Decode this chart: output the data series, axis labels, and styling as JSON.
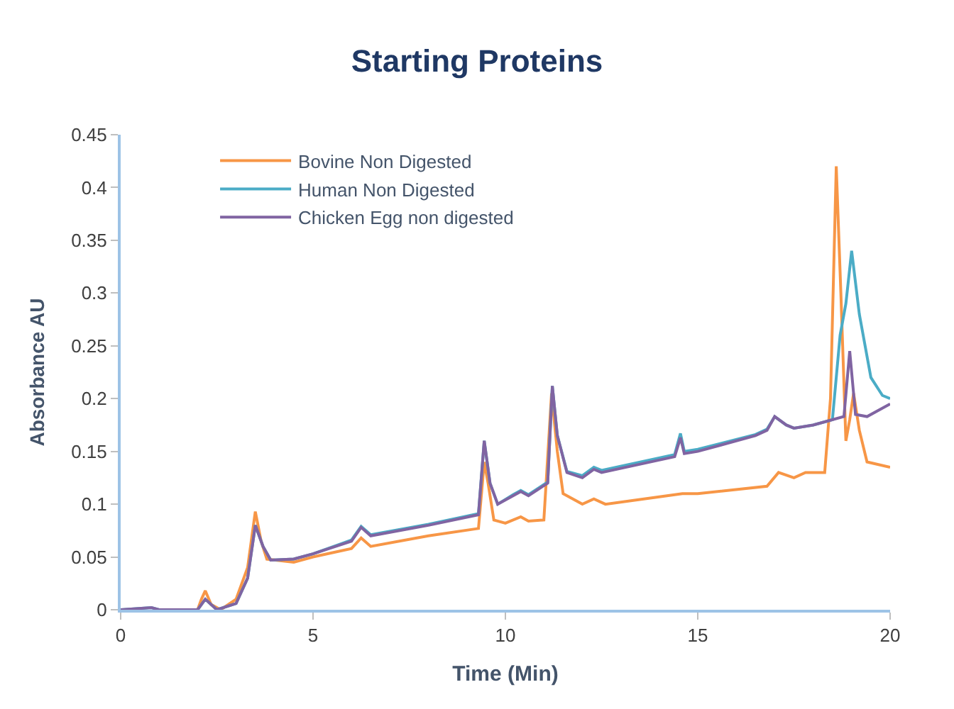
{
  "chart_data": {
    "type": "line",
    "title": "Starting Proteins",
    "xlabel": "Time (Min)",
    "ylabel": "Absorbance AU",
    "xlim": [
      0,
      20
    ],
    "xticks": [
      0,
      5,
      10,
      15,
      20
    ],
    "ylim": [
      0,
      0.45
    ],
    "yticks": [
      0,
      0.05,
      0.1,
      0.15,
      0.2,
      0.25,
      0.3,
      0.35,
      0.4,
      0.45
    ],
    "legend": "top left",
    "marker": "none",
    "line_style": "solid",
    "series": [
      {
        "name": "Bovine Non Digested",
        "color": "#f79646",
        "x": [
          1,
          2,
          2.1,
          2.2,
          2.35,
          2.6,
          3.0,
          3.3,
          3.5,
          3.65,
          3.8,
          4.5,
          5,
          6,
          6.25,
          6.5,
          8,
          9.3,
          9.45,
          9.55,
          9.7,
          10,
          10.4,
          10.6,
          11.0,
          11.2,
          11.35,
          11.5,
          12,
          12.3,
          12.6,
          14,
          14.6,
          15,
          16.8,
          17.1,
          17.5,
          17.8,
          18.3,
          18.45,
          18.6,
          18.72,
          18.85,
          18.95,
          19.05,
          19.2,
          19.4,
          20
        ],
        "values": [
          0,
          0,
          0.01,
          0.018,
          0.005,
          0,
          0.01,
          0.04,
          0.093,
          0.065,
          0.048,
          0.045,
          0.05,
          0.058,
          0.068,
          0.06,
          0.07,
          0.077,
          0.14,
          0.12,
          0.085,
          0.082,
          0.088,
          0.084,
          0.085,
          0.205,
          0.15,
          0.11,
          0.1,
          0.105,
          0.1,
          0.107,
          0.11,
          0.11,
          0.117,
          0.13,
          0.125,
          0.13,
          0.13,
          0.2,
          0.42,
          0.3,
          0.16,
          0.18,
          0.205,
          0.17,
          0.14,
          0.135
        ]
      },
      {
        "name": "Human Non Digested",
        "color": "#4bacc6",
        "x": [
          0,
          0.8,
          1,
          2,
          2.2,
          2.5,
          3,
          3.3,
          3.5,
          3.7,
          3.9,
          4.5,
          5,
          6,
          6.25,
          6.5,
          8,
          9.3,
          9.45,
          9.6,
          9.8,
          10.2,
          10.4,
          10.6,
          11.1,
          11.22,
          11.35,
          11.6,
          12,
          12.3,
          12.5,
          14.4,
          14.55,
          14.65,
          15,
          16.5,
          16.8,
          17.0,
          17.3,
          17.5,
          18,
          18.3,
          18.5,
          18.7,
          18.85,
          19.0,
          19.2,
          19.5,
          19.8,
          20
        ],
        "values": [
          0,
          0.002,
          0,
          0,
          0.01,
          0,
          0.006,
          0.03,
          0.08,
          0.06,
          0.047,
          0.048,
          0.053,
          0.066,
          0.079,
          0.071,
          0.081,
          0.091,
          0.16,
          0.12,
          0.1,
          0.109,
          0.113,
          0.109,
          0.121,
          0.212,
          0.165,
          0.131,
          0.127,
          0.135,
          0.132,
          0.147,
          0.167,
          0.15,
          0.152,
          0.166,
          0.171,
          0.183,
          0.175,
          0.172,
          0.175,
          0.178,
          0.18,
          0.26,
          0.29,
          0.34,
          0.28,
          0.22,
          0.203,
          0.2
        ]
      },
      {
        "name": "Chicken Egg non digested",
        "color": "#8064a2",
        "x": [
          0,
          0.8,
          1,
          2,
          2.2,
          2.5,
          3,
          3.3,
          3.5,
          3.7,
          3.9,
          4.5,
          5,
          6,
          6.25,
          6.5,
          8,
          9.3,
          9.45,
          9.6,
          9.8,
          10.2,
          10.4,
          10.6,
          11.1,
          11.22,
          11.35,
          11.6,
          12,
          12.3,
          12.5,
          14.4,
          14.55,
          14.65,
          15,
          16.5,
          16.8,
          17.0,
          17.3,
          17.5,
          18,
          18.8,
          18.95,
          19.1,
          19.4,
          20
        ],
        "values": [
          0,
          0.002,
          0,
          0,
          0.01,
          0,
          0.006,
          0.03,
          0.08,
          0.06,
          0.047,
          0.048,
          0.053,
          0.065,
          0.078,
          0.07,
          0.08,
          0.09,
          0.16,
          0.12,
          0.1,
          0.108,
          0.112,
          0.108,
          0.12,
          0.212,
          0.165,
          0.13,
          0.125,
          0.133,
          0.13,
          0.145,
          0.163,
          0.148,
          0.15,
          0.165,
          0.17,
          0.183,
          0.175,
          0.172,
          0.175,
          0.183,
          0.245,
          0.185,
          0.183,
          0.195
        ]
      }
    ]
  }
}
